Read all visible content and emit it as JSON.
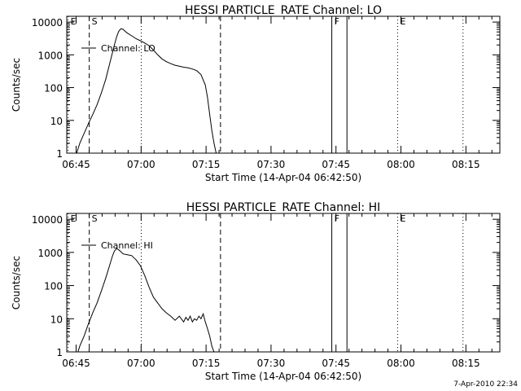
{
  "footer_timestamp": "7-Apr-2010 22:34",
  "chart_data": [
    {
      "type": "line",
      "title": "HESSI PARTICLE_RATE Channel: LO",
      "xlabel": "Start Time (14-Apr-04 06:42:50)",
      "ylabel": "Counts/sec",
      "x_unit": "minutes after 06:42:50",
      "xlim": [
        0,
        100
      ],
      "ylim": [
        1,
        15000
      ],
      "yscale": "log",
      "x_ticks": [
        "06:45",
        "07:00",
        "07:15",
        "07:30",
        "07:45",
        "08:00",
        "08:15"
      ],
      "y_ticks": [
        "1",
        "10",
        "100",
        "1000",
        "10000"
      ],
      "legend": {
        "label": "Channel: LO",
        "position": "upper-left"
      },
      "markers": [
        {
          "label": "E",
          "x": 0.3,
          "style": "dotted"
        },
        {
          "label": "S",
          "x": 5.2,
          "style": "dashed"
        },
        {
          "label": "",
          "x": 17.2,
          "style": "dotted"
        },
        {
          "label": "",
          "x": 35.5,
          "style": "dashed"
        },
        {
          "label": "F",
          "x": 61.2,
          "style": "solid"
        },
        {
          "label": "",
          "x": 64.7,
          "style": "solid"
        },
        {
          "label": "E",
          "x": 76.4,
          "style": "dotted"
        },
        {
          "label": "",
          "x": 91.5,
          "style": "dotted"
        }
      ],
      "series": [
        {
          "name": "Channel: LO",
          "x": [
            2.3,
            3,
            4,
            5,
            6,
            7,
            8,
            9,
            10,
            11,
            11.5,
            12,
            12.5,
            13,
            13.5,
            14,
            15,
            16,
            17,
            18,
            19,
            20,
            21,
            22,
            23,
            24,
            25,
            26,
            27,
            28,
            29,
            30,
            31,
            32,
            32.5,
            33,
            33.5,
            34,
            34.5,
            35
          ],
          "y": [
            1,
            2,
            4,
            8,
            15,
            30,
            70,
            180,
            600,
            2000,
            3500,
            5200,
            6300,
            6000,
            5200,
            4600,
            3800,
            3100,
            2700,
            2300,
            1900,
            1400,
            1000,
            750,
            620,
            540,
            480,
            450,
            420,
            400,
            370,
            330,
            250,
            120,
            50,
            15,
            5,
            2,
            1,
            1
          ]
        }
      ]
    },
    {
      "type": "line",
      "title": "HESSI PARTICLE_RATE Channel: HI",
      "xlabel": "Start Time (14-Apr-04 06:42:50)",
      "ylabel": "Counts/sec",
      "x_unit": "minutes after 06:42:50",
      "xlim": [
        0,
        100
      ],
      "ylim": [
        1,
        15000
      ],
      "yscale": "log",
      "x_ticks": [
        "06:45",
        "07:00",
        "07:15",
        "07:30",
        "07:45",
        "08:00",
        "08:15"
      ],
      "y_ticks": [
        "1",
        "10",
        "100",
        "1000",
        "10000"
      ],
      "legend": {
        "label": "Channel: HI",
        "position": "upper-left"
      },
      "markers": [
        {
          "label": "E",
          "x": 0.3,
          "style": "dotted"
        },
        {
          "label": "S",
          "x": 5.2,
          "style": "dashed"
        },
        {
          "label": "",
          "x": 17.2,
          "style": "dotted"
        },
        {
          "label": "",
          "x": 35.5,
          "style": "dashed"
        },
        {
          "label": "F",
          "x": 61.2,
          "style": "solid"
        },
        {
          "label": "",
          "x": 64.7,
          "style": "solid"
        },
        {
          "label": "E",
          "x": 76.4,
          "style": "dotted"
        },
        {
          "label": "",
          "x": 91.5,
          "style": "dotted"
        }
      ],
      "series": [
        {
          "name": "Channel: HI",
          "x": [
            2.6,
            3,
            4,
            5,
            6,
            7,
            8,
            9,
            10,
            10.5,
            11,
            11.5,
            12,
            12.5,
            13,
            14,
            15,
            16,
            17,
            18,
            19,
            20,
            21,
            22,
            23,
            24,
            25,
            26,
            27,
            27.5,
            28,
            28.5,
            29,
            29.5,
            30,
            30.5,
            31,
            31.5,
            32,
            32.5,
            33,
            33.5,
            34,
            34.5
          ],
          "y": [
            1,
            1.5,
            3,
            7,
            15,
            30,
            70,
            170,
            450,
            750,
            1100,
            1300,
            1200,
            1050,
            900,
            850,
            800,
            600,
            400,
            200,
            90,
            45,
            30,
            20,
            15,
            12,
            9,
            12,
            8,
            11,
            9,
            12,
            8,
            10,
            9,
            12,
            10,
            14,
            8,
            5,
            3,
            1.5,
            1,
            1
          ]
        }
      ]
    }
  ]
}
